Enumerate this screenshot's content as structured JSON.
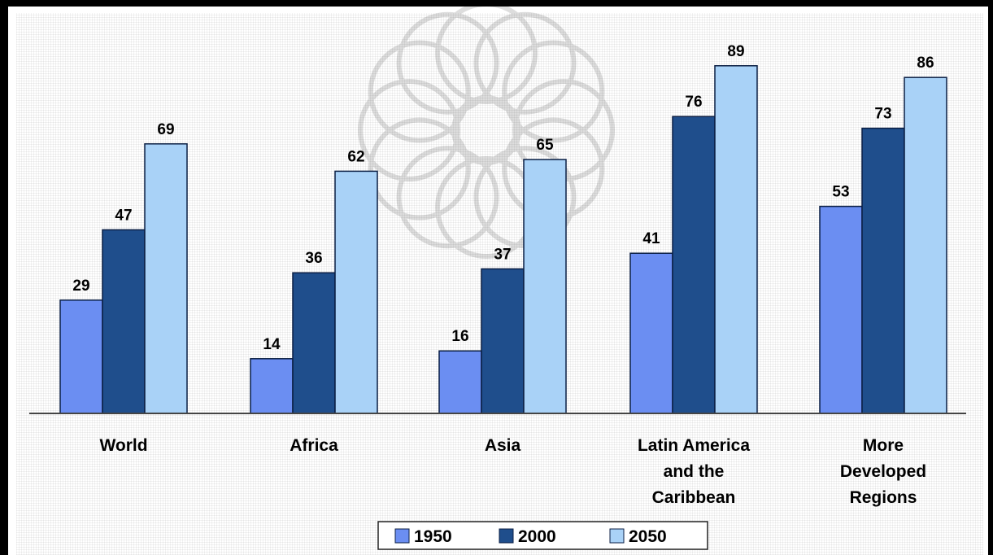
{
  "chart_data": {
    "type": "bar",
    "categories": [
      "World",
      "Africa",
      "Asia",
      "Latin America and the Caribbean",
      "More Developed Regions"
    ],
    "category_lines": [
      [
        "World"
      ],
      [
        "Africa"
      ],
      [
        "Asia"
      ],
      [
        "Latin America",
        "and the",
        "Caribbean"
      ],
      [
        "More",
        "Developed",
        "Regions"
      ]
    ],
    "series": [
      {
        "name": "1950",
        "values": [
          29,
          14,
          16,
          41,
          53
        ],
        "color": "#6b8ef2"
      },
      {
        "name": "2000",
        "values": [
          47,
          36,
          37,
          76,
          73
        ],
        "color": "#1f4e8c"
      },
      {
        "name": "2050",
        "values": [
          69,
          62,
          65,
          89,
          86
        ],
        "color": "#a9d2f7"
      }
    ],
    "title": "",
    "xlabel": "",
    "ylabel": "",
    "ylim": [
      0,
      100
    ],
    "grid": false,
    "legend": "bottom-center",
    "data_labels": true
  }
}
